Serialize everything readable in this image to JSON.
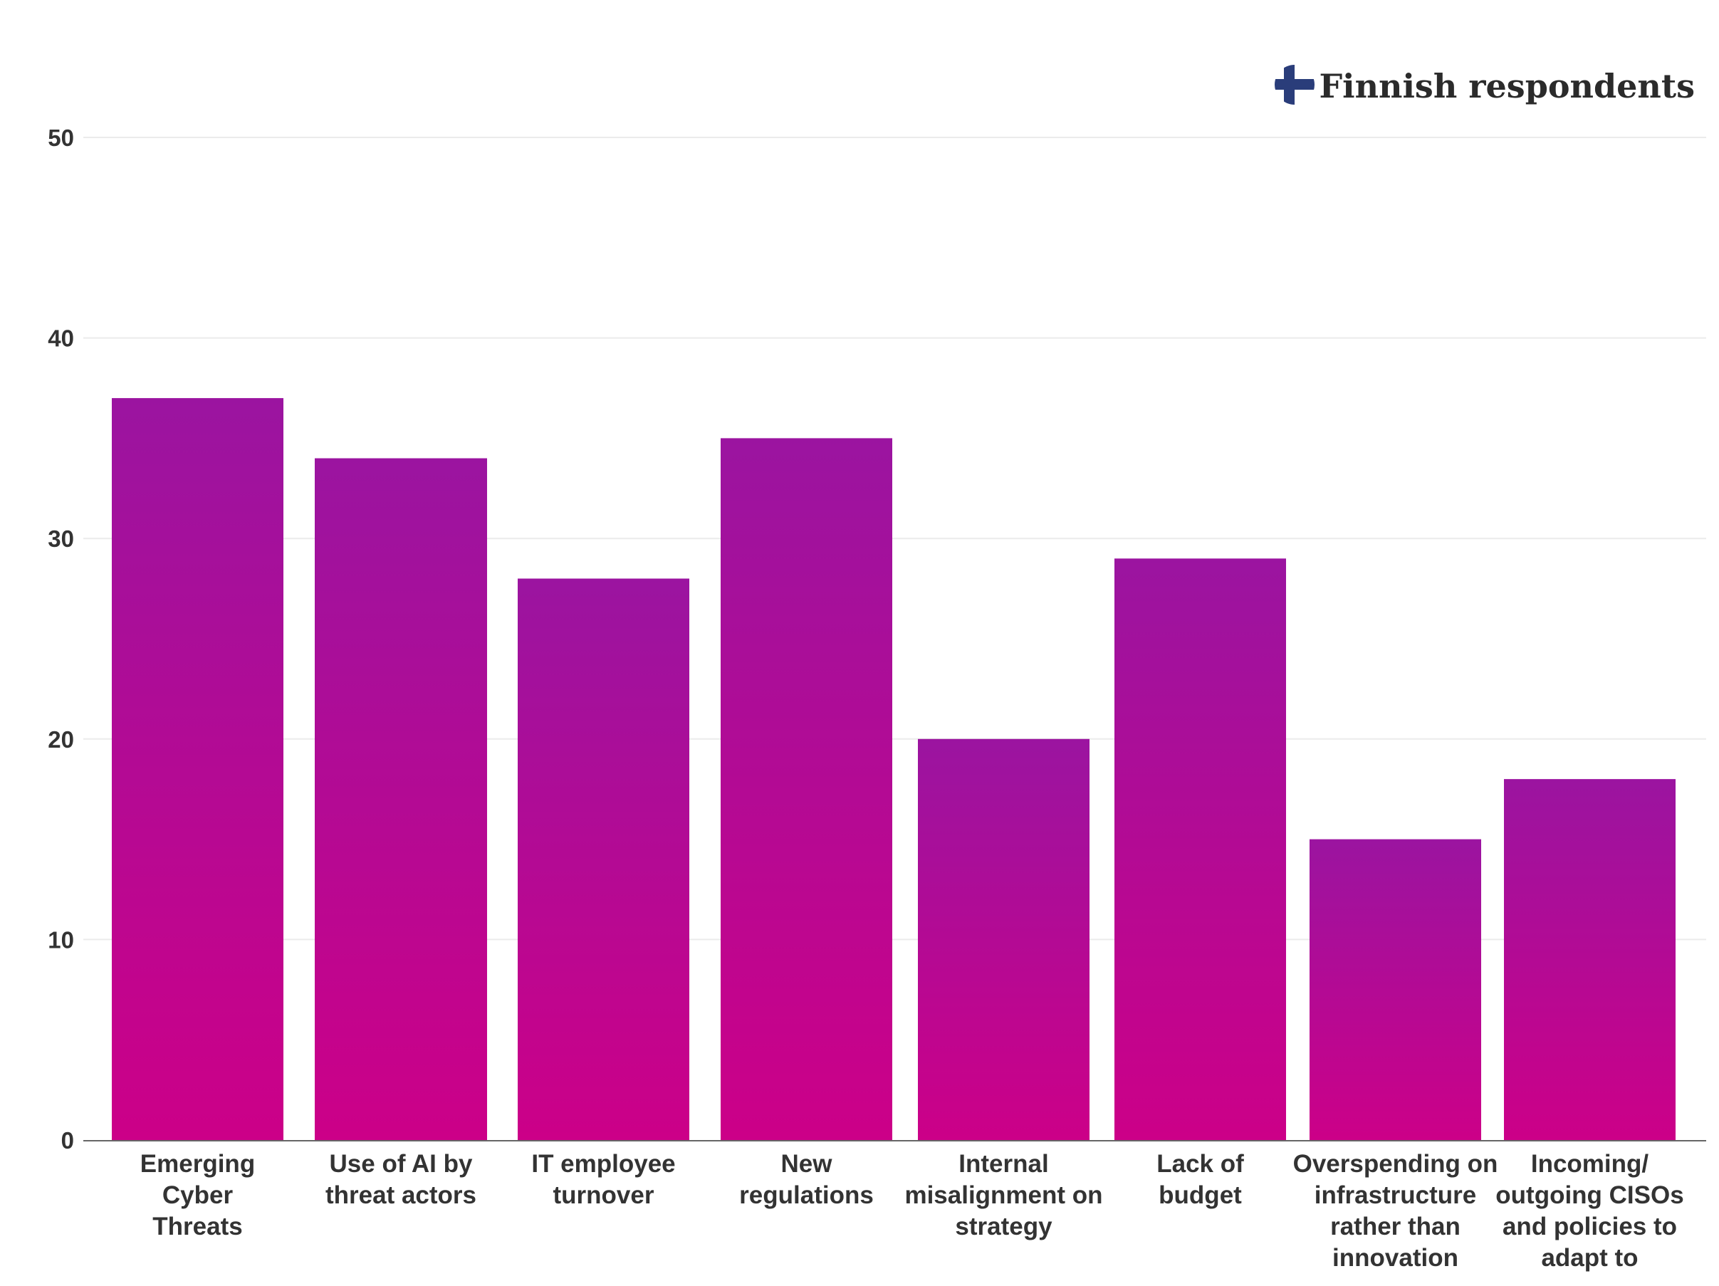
{
  "chart_data": {
    "type": "bar",
    "title": "",
    "xlabel": "",
    "ylabel": "",
    "ylim": [
      0,
      50
    ],
    "yticks": [
      0,
      10,
      20,
      30,
      40,
      50
    ],
    "grid": true,
    "legend": {
      "position": "top-right",
      "label": "Finnish respondents",
      "icon": "finland-flag-icon"
    },
    "categories": [
      [
        "Emerging",
        "Cyber",
        "Threats"
      ],
      [
        "Use of AI by",
        "threat actors"
      ],
      [
        "IT employee",
        "turnover"
      ],
      [
        "New",
        "regulations"
      ],
      [
        "Internal",
        "misalignment on",
        "strategy"
      ],
      [
        "Lack of",
        "budget"
      ],
      [
        "Overspending on",
        "infrastructure",
        "rather than",
        "innovation"
      ],
      [
        "Incoming/",
        "outgoing CISOs",
        "and policies to",
        "adapt to"
      ]
    ],
    "values": [
      37,
      34,
      28,
      35,
      20,
      29,
      15,
      18
    ]
  },
  "colors": {
    "bar_top": "#9b14a0",
    "bar_bottom": "#cc0088",
    "grid": "#ebebeb",
    "axis": "#666666",
    "text": "#333333",
    "flag_blue": "#2a3d7a"
  }
}
